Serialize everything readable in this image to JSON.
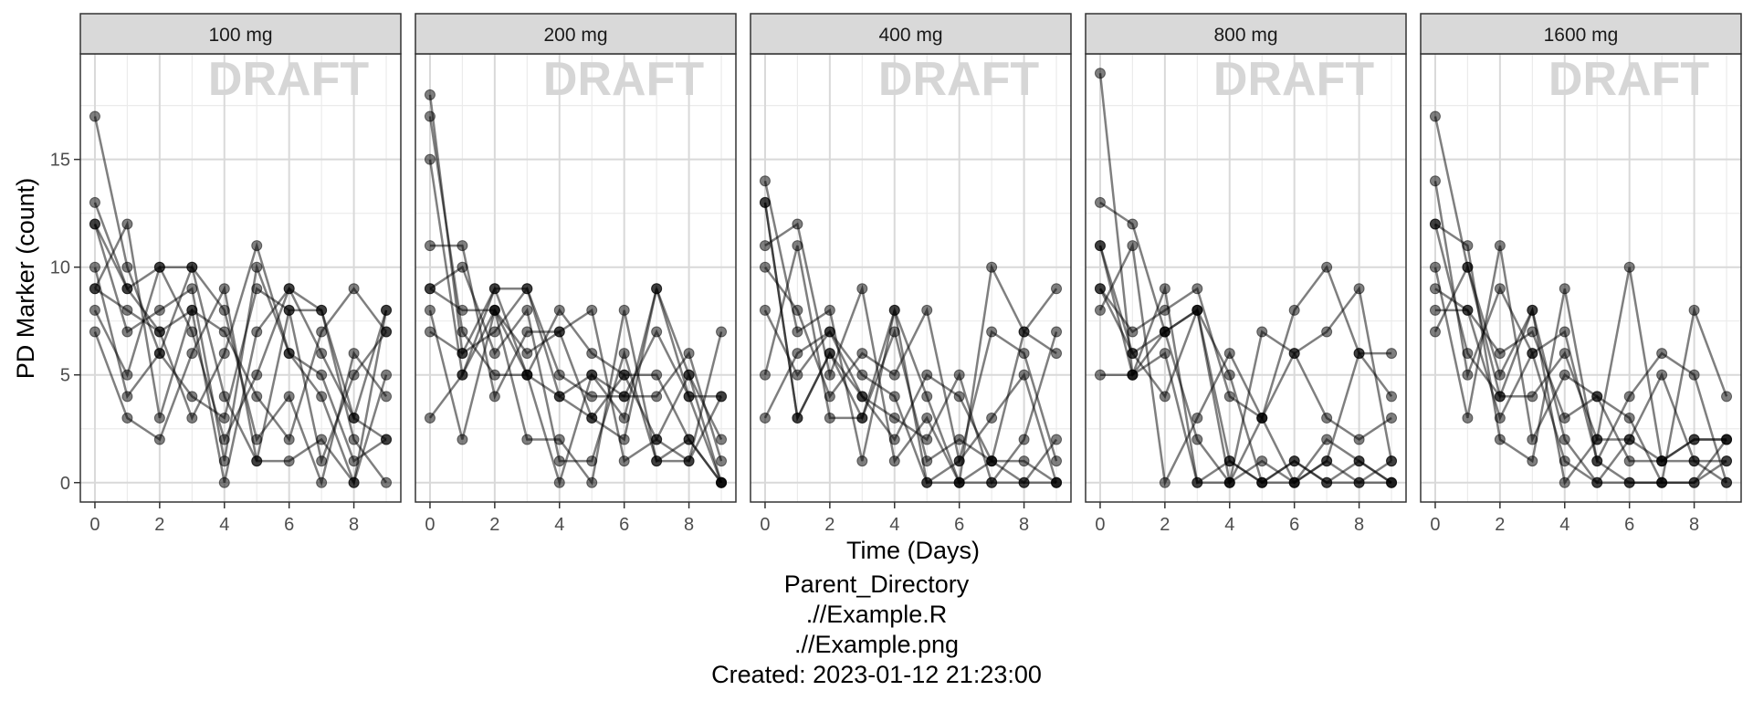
{
  "chart_data": {
    "type": "line",
    "xlabel": "Time (Days)",
    "ylabel": "PD Marker (count)",
    "watermark": "DRAFT",
    "xlim": [
      -0.45,
      9.45
    ],
    "ylim": [
      -0.9,
      19.9
    ],
    "x_ticks": [
      0,
      2,
      4,
      6,
      8
    ],
    "y_ticks": [
      0,
      5,
      10,
      15
    ],
    "grid": true,
    "x": [
      0,
      1,
      2,
      3,
      4,
      5,
      6,
      7,
      8,
      9
    ],
    "panels": [
      {
        "label": "100 mg",
        "series": [
          {
            "values": [
              17,
              10,
              6,
              10,
              4,
              1,
              1,
              2,
              0,
              5
            ]
          },
          {
            "values": [
              13,
              9,
              10,
              7,
              2,
              5,
              9,
              8,
              3,
              2
            ]
          },
          {
            "values": [
              12,
              7,
              8,
              9,
              1,
              10,
              6,
              4,
              0,
              8
            ]
          },
          {
            "values": [
              10,
              4,
              6,
              4,
              3,
              9,
              8,
              8,
              2,
              0
            ]
          },
          {
            "values": [
              9,
              12,
              3,
              8,
              7,
              4,
              2,
              7,
              9,
              7
            ]
          },
          {
            "values": [
              8,
              5,
              10,
              10,
              8,
              2,
              4,
              0,
              6,
              4
            ]
          },
          {
            "values": [
              7,
              3,
              2,
              6,
              9,
              1,
              8,
              1,
              5,
              7
            ]
          },
          {
            "values": [
              12,
              9,
              7,
              3,
              6,
              11,
              6,
              5,
              1,
              2
            ]
          },
          {
            "values": [
              9,
              8,
              7,
              8,
              0,
              7,
              9,
              6,
              3,
              8
            ]
          }
        ]
      },
      {
        "label": "200 mg",
        "series": [
          {
            "values": [
              18,
              6,
              9,
              9,
              4,
              5,
              3,
              9,
              5,
              0
            ]
          },
          {
            "values": [
              17,
              7,
              5,
              5,
              4,
              3,
              5,
              2,
              1,
              4
            ]
          },
          {
            "values": [
              15,
              5,
              8,
              5,
              0,
              5,
              4,
              4,
              6,
              1
            ]
          },
          {
            "values": [
              11,
              11,
              4,
              7,
              7,
              8,
              1,
              2,
              5,
              2
            ]
          },
          {
            "values": [
              9,
              10,
              6,
              8,
              1,
              1,
              6,
              1,
              2,
              0
            ]
          },
          {
            "values": [
              8,
              2,
              8,
              2,
              2,
              0,
              8,
              1,
              1,
              7
            ]
          },
          {
            "values": [
              7,
              6,
              7,
              9,
              5,
              4,
              4,
              7,
              4,
              4
            ]
          },
          {
            "values": [
              3,
              5,
              9,
              5,
              8,
              6,
              5,
              5,
              2,
              0
            ]
          },
          {
            "values": [
              9,
              8,
              8,
              6,
              7,
              3,
              2,
              9,
              4,
              0
            ]
          }
        ]
      },
      {
        "label": "400 mg",
        "series": [
          {
            "values": [
              14,
              7,
              8,
              1,
              8,
              0,
              0,
              0,
              0,
              0
            ]
          },
          {
            "values": [
              13,
              3,
              6,
              4,
              2,
              5,
              4,
              1,
              0,
              2
            ]
          },
          {
            "values": [
              11,
              12,
              5,
              9,
              1,
              3,
              0,
              10,
              7,
              6
            ]
          },
          {
            "values": [
              10,
              8,
              4,
              6,
              5,
              8,
              1,
              3,
              5,
              0
            ]
          },
          {
            "values": [
              8,
              5,
              7,
              4,
              3,
              2,
              5,
              0,
              2,
              7
            ]
          },
          {
            "values": [
              5,
              11,
              3,
              3,
              7,
              1,
              2,
              1,
              7,
              9
            ]
          },
          {
            "values": [
              3,
              6,
              7,
              5,
              4,
              0,
              1,
              7,
              6,
              1
            ]
          },
          {
            "values": [
              13,
              3,
              6,
              3,
              8,
              4,
              0,
              1,
              1,
              0
            ]
          }
        ]
      },
      {
        "label": "800 mg",
        "series": [
          {
            "values": [
              19,
              5,
              9,
              0,
              1,
              0,
              1,
              0,
              1,
              0
            ]
          },
          {
            "values": [
              13,
              12,
              7,
              2,
              0,
              1,
              0,
              1,
              0,
              1
            ]
          },
          {
            "values": [
              11,
              6,
              4,
              8,
              1,
              0,
              1,
              0,
              0,
              0
            ]
          },
          {
            "values": [
              9,
              7,
              8,
              9,
              4,
              3,
              6,
              7,
              9,
              1
            ]
          },
          {
            "values": [
              8,
              11,
              0,
              3,
              6,
              3,
              8,
              10,
              6,
              6
            ]
          },
          {
            "values": [
              5,
              5,
              6,
              0,
              0,
              7,
              6,
              3,
              2,
              3
            ]
          },
          {
            "values": [
              9,
              6,
              7,
              8,
              5,
              0,
              0,
              2,
              1,
              0
            ]
          },
          {
            "values": [
              11,
              5,
              7,
              8,
              0,
              3,
              0,
              1,
              6,
              4
            ]
          }
        ]
      },
      {
        "label": "1600 mg",
        "series": [
          {
            "values": [
              17,
              10,
              4,
              8,
              2,
              0,
              0,
              0,
              0,
              1
            ]
          },
          {
            "values": [
              14,
              5,
              9,
              6,
              1,
              0,
              2,
              1,
              2,
              2
            ]
          },
          {
            "values": [
              12,
              11,
              2,
              1,
              9,
              1,
              0,
              0,
              8,
              4
            ]
          },
          {
            "values": [
              10,
              3,
              11,
              2,
              5,
              4,
              1,
              1,
              1,
              1
            ]
          },
          {
            "values": [
              9,
              8,
              6,
              7,
              3,
              4,
              3,
              0,
              0,
              2
            ]
          },
          {
            "values": [
              8,
              8,
              3,
              6,
              7,
              1,
              4,
              6,
              5,
              0
            ]
          },
          {
            "values": [
              7,
              10,
              5,
              8,
              0,
              2,
              10,
              1,
              2,
              2
            ]
          },
          {
            "values": [
              12,
              6,
              4,
              4,
              6,
              2,
              2,
              5,
              1,
              0
            ]
          }
        ]
      }
    ]
  },
  "caption": {
    "line1": "Parent_Directory",
    "line2": ".//Example.R",
    "line3": ".//Example.png",
    "line4": "Created: 2023-01-12 21:23:00"
  }
}
